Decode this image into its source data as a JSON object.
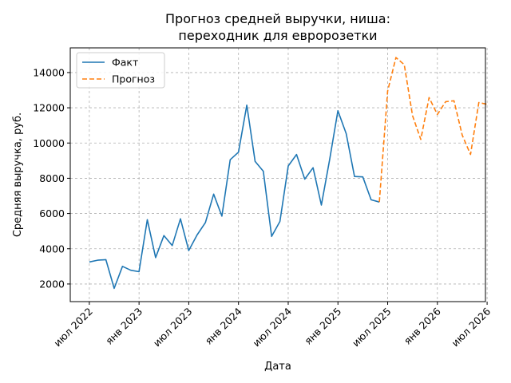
{
  "chart_data": {
    "type": "line",
    "title_line1": "Прогноз средней выручки, ниша:",
    "title_line2": "переходник для евророзетки",
    "xlabel": "Дата",
    "ylabel": "Средняя выручка, руб.",
    "x_ticks": [
      "июл 2022",
      "янв 2023",
      "июл 2023",
      "янв 2024",
      "июл 2024",
      "янв 2025",
      "июл 2025",
      "янв 2026",
      "июл 2026"
    ],
    "y_ticks": [
      2000,
      4000,
      6000,
      8000,
      10000,
      12000,
      14000
    ],
    "ylim": [
      1000,
      15400
    ],
    "xlim_months": [
      -2.3,
      47.8
    ],
    "grid": true,
    "legend_position": "top-left",
    "series": [
      {
        "name": "Факт",
        "color": "#1f77b4",
        "style": "solid",
        "x": [
          "2022-07",
          "2022-08",
          "2022-09",
          "2022-10",
          "2022-11",
          "2022-12",
          "2023-01",
          "2023-02",
          "2023-03",
          "2023-04",
          "2023-05",
          "2023-06",
          "2023-07",
          "2023-08",
          "2023-09",
          "2023-10",
          "2023-11",
          "2023-12",
          "2024-01",
          "2024-02",
          "2024-03",
          "2024-04",
          "2024-05",
          "2024-06",
          "2024-07",
          "2024-08",
          "2024-09",
          "2024-10",
          "2024-11",
          "2024-12",
          "2025-01",
          "2025-02",
          "2025-03",
          "2025-04",
          "2025-05",
          "2025-06"
        ],
        "y": [
          3250,
          3350,
          3380,
          1750,
          3000,
          2780,
          2700,
          5650,
          3500,
          4750,
          4180,
          5700,
          3900,
          4780,
          5480,
          7100,
          5850,
          9050,
          9480,
          12150,
          8960,
          8400,
          4700,
          5550,
          8700,
          9350,
          7950,
          8600,
          6480,
          9070,
          11830,
          10530,
          8100,
          8080,
          6780,
          6650
        ]
      },
      {
        "name": "Прогноз",
        "color": "#ff7f0e",
        "style": "dashed",
        "x": [
          "2025-06",
          "2025-07",
          "2025-08",
          "2025-09",
          "2025-10",
          "2025-11",
          "2025-12",
          "2026-01",
          "2026-02",
          "2026-03",
          "2026-04",
          "2026-05",
          "2026-06",
          "2026-07"
        ],
        "y": [
          6650,
          12950,
          14850,
          14450,
          11550,
          10200,
          12580,
          11620,
          12350,
          12400,
          10450,
          9350,
          12300,
          12200
        ]
      }
    ]
  }
}
